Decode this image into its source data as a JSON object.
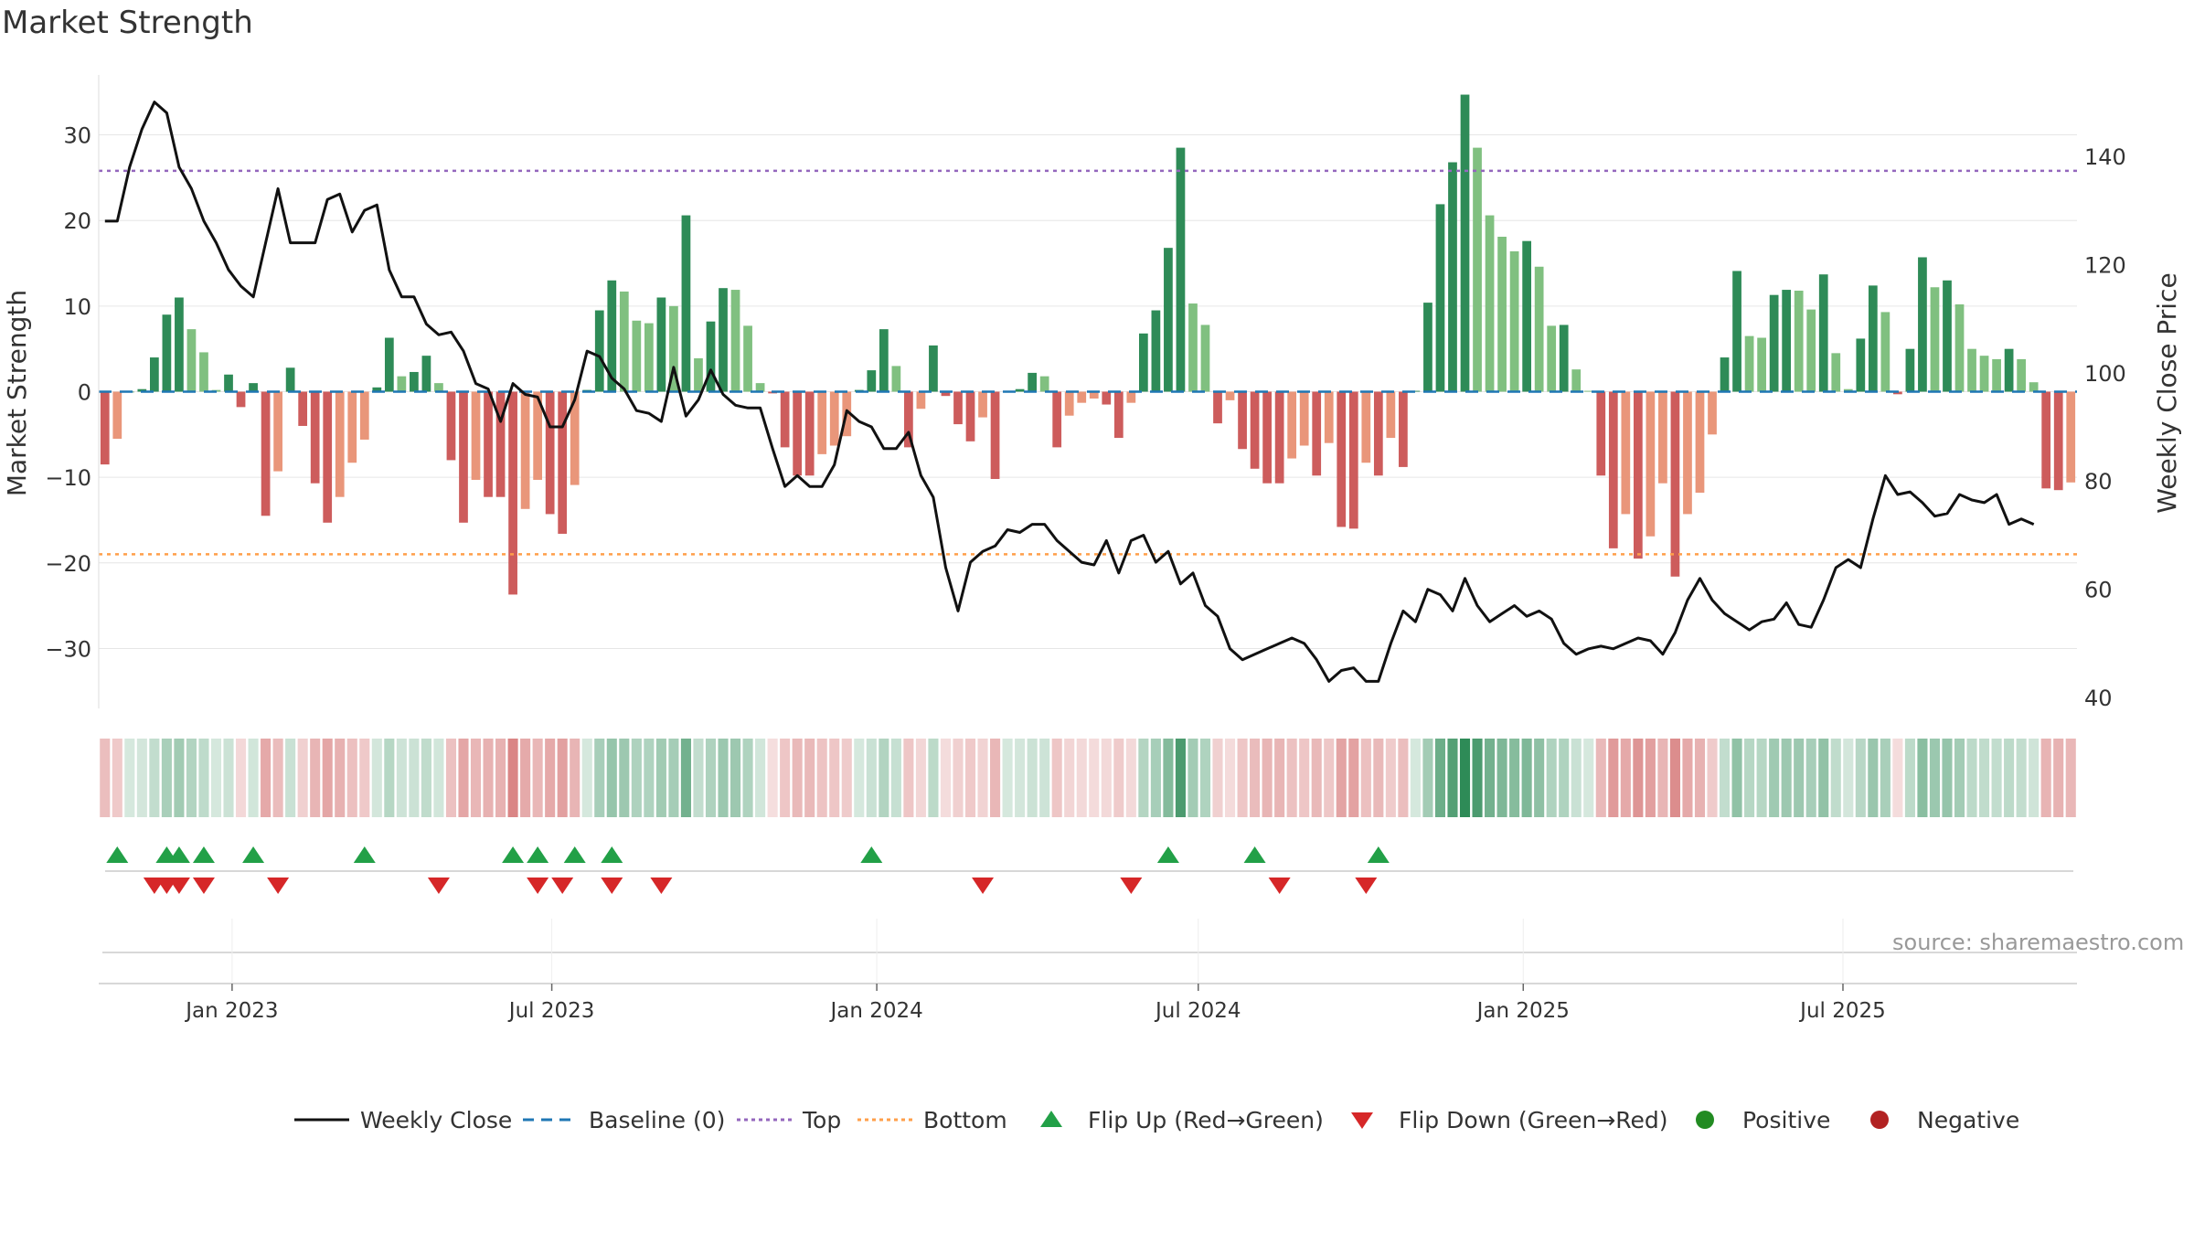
{
  "chart_data": {
    "type": "bar+line",
    "title": "Market Strength",
    "ylabel_left": "Market Strength",
    "ylabel_right": "Weekly Close Price",
    "ylim_left": [
      -37,
      37
    ],
    "ylim_right": [
      38,
      155
    ],
    "yticks_left": [
      30,
      20,
      10,
      0,
      -10,
      -20,
      -30
    ],
    "yticks_right": [
      140,
      120,
      100,
      80,
      60,
      40
    ],
    "top_line": 25.8,
    "bottom_line": -19,
    "x_start": "2022-10-21",
    "x_step_days": 7,
    "x_end": "2025-10-31",
    "x_tick_labels": [
      {
        "date": "2023-01-01",
        "label": "Jan 2023"
      },
      {
        "date": "2023-07-01",
        "label": "Jul 2023"
      },
      {
        "date": "2024-01-01",
        "label": "Jan 2024"
      },
      {
        "date": "2024-07-01",
        "label": "Jul 2024"
      },
      {
        "date": "2025-01-01",
        "label": "Jan 2025"
      },
      {
        "date": "2025-07-01",
        "label": "Jul 2025"
      }
    ],
    "market_strength": [
      -8.5,
      -5.5,
      0,
      0.3,
      4,
      9,
      11,
      7.3,
      4.6,
      0.2,
      2,
      -1.8,
      1,
      -14.5,
      -9.3,
      2.8,
      -4,
      -10.7,
      -15.3,
      -12.3,
      -8.3,
      -5.6,
      0.5,
      6.3,
      1.8,
      2.3,
      4.2,
      1,
      -8,
      -15.3,
      -10.3,
      -12.3,
      -12.3,
      -23.7,
      -13.7,
      -10.3,
      -14.3,
      -16.6,
      -10.9,
      0.2,
      9.5,
      13,
      11.7,
      8.3,
      8,
      11,
      10,
      20.6,
      3.9,
      8.2,
      12.1,
      11.9,
      7.7,
      1,
      -0.2,
      -6.5,
      -9.8,
      -9.8,
      -7.3,
      -6.3,
      -5.2,
      0.2,
      2.5,
      7.3,
      3,
      -6.5,
      -2,
      5.4,
      -0.5,
      -3.8,
      -5.8,
      -3,
      -10.2,
      0.1,
      0.3,
      2.2,
      1.8,
      -6.5,
      -2.8,
      -1.3,
      -0.8,
      -1.5,
      -5.4,
      -1.3,
      6.8,
      9.5,
      16.8,
      28.5,
      10.3,
      7.8,
      -3.7,
      -1,
      -6.7,
      -9,
      -10.7,
      -10.7,
      -7.8,
      -6.3,
      -9.8,
      -6,
      -15.8,
      -16,
      -8.3,
      -9.8,
      -5.4,
      -8.8,
      0.1,
      10.4,
      21.9,
      26.8,
      34.7,
      28.5,
      20.6,
      18.1,
      16.4,
      17.6,
      14.6,
      7.7,
      7.8,
      2.6,
      0.1,
      -9.8,
      -18.3,
      -14.3,
      -19.5,
      -16.9,
      -10.7,
      -21.6,
      -14.3,
      -11.8,
      -5,
      4,
      14.1,
      6.5,
      6.3,
      11.3,
      11.9,
      11.8,
      9.6,
      13.7,
      4.5,
      0.3,
      6.2,
      12.4,
      9.3,
      -0.3,
      5,
      15.7,
      12.2,
      13,
      10.2,
      5,
      4.2,
      3.8,
      5,
      3.8,
      1.1,
      -11.3,
      -11.5,
      -10.6
    ],
    "weekly_close": [
      128,
      128,
      138,
      145,
      150,
      148,
      138,
      134,
      128,
      124,
      119,
      116,
      114,
      124,
      134,
      124,
      124,
      124,
      132,
      133,
      126,
      130,
      131,
      119,
      114,
      114,
      109,
      107,
      107.5,
      104,
      98,
      97,
      91,
      98,
      96,
      95.5,
      90,
      90,
      95,
      104,
      103,
      99,
      97,
      93,
      92.5,
      91,
      101,
      92,
      95,
      100.5,
      96,
      94,
      93.5,
      93.5,
      86,
      79,
      81,
      79,
      79,
      83,
      93,
      91,
      90,
      86,
      86,
      89,
      81,
      77,
      64,
      56,
      65,
      67,
      68,
      71,
      70.5,
      72,
      72,
      69,
      67,
      65,
      64.5,
      69,
      63,
      69,
      70,
      65,
      67,
      61,
      63,
      57,
      55,
      49,
      47,
      48,
      49,
      50,
      51,
      50,
      47,
      43,
      45,
      45.5,
      43,
      43,
      50,
      56,
      54,
      60,
      59,
      56,
      62,
      57,
      54,
      55.5,
      57,
      55,
      56,
      54.5,
      50,
      48,
      49,
      49.5,
      49,
      50,
      51,
      50.5,
      48,
      52,
      58,
      62,
      58,
      55.5,
      54,
      52.5,
      54,
      54.5,
      57.5,
      53.5,
      53,
      58,
      64,
      65.5,
      64,
      73,
      81,
      77.5,
      78,
      76,
      73.5,
      74,
      77.5,
      76.5,
      76,
      77.5,
      72,
      73,
      72
    ],
    "flip_up_index": [
      1,
      5,
      6,
      8,
      12,
      21,
      33,
      35,
      38,
      41,
      62,
      86,
      93,
      103
    ],
    "flip_down_index": [
      4,
      5,
      6,
      8,
      14,
      27,
      35,
      37,
      41,
      45,
      71,
      83,
      95,
      102
    ],
    "legend": [
      "Weekly Close",
      "Baseline (0)",
      "Top",
      "Bottom",
      "Flip Up (Red→Green)",
      "Flip Down (Green→Red)",
      "Positive",
      "Negative"
    ],
    "annotation": "source: sharemaestro.com"
  },
  "colors": {
    "pos_strong": "#2e8b57",
    "pos_light": "#80c080",
    "neg_strong": "#cd5c5c",
    "neg_light": "#e9967a",
    "close_line": "#111111",
    "baseline": "#1f77b4",
    "top_line": "#9467bd",
    "bottom_line": "#ff9f4a",
    "flip_up": "#22a047",
    "flip_down": "#d62728",
    "positive_dot": "#228b22",
    "negative_dot": "#b22222",
    "grid": "#e6e6e6",
    "axis_text": "#333333"
  }
}
